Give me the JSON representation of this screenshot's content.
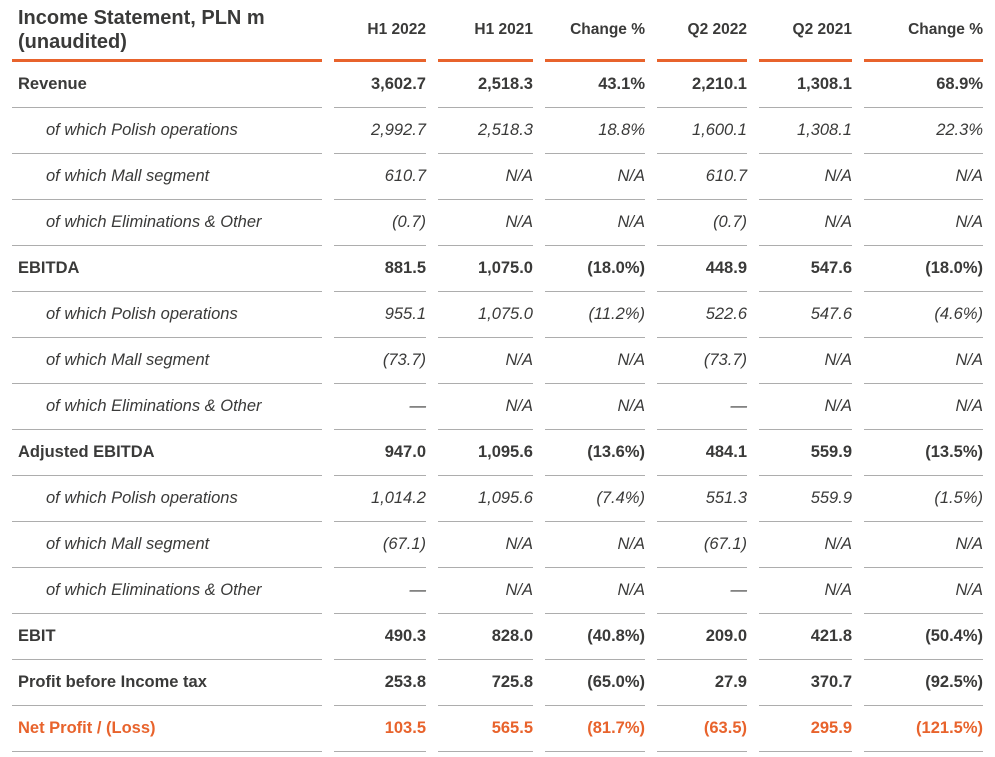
{
  "chart_data": {
    "type": "table",
    "title_line1": "Income Statement, PLN m",
    "title_line2": "(unaudited)",
    "columns": [
      "H1 2022",
      "H1 2021",
      "Change %",
      "Q2 2022",
      "Q2 2021",
      "Change %"
    ],
    "rows": [
      {
        "label": "Revenue",
        "style": "section",
        "values": [
          "3,602.7",
          "2,518.3",
          "43.1%",
          "2,210.1",
          "1,308.1",
          "68.9%"
        ]
      },
      {
        "label": "of which Polish operations",
        "style": "sub",
        "values": [
          "2,992.7",
          "2,518.3",
          "18.8%",
          "1,600.1",
          "1,308.1",
          "22.3%"
        ]
      },
      {
        "label": "of which Mall segment",
        "style": "sub",
        "values": [
          "610.7",
          "N/A",
          "N/A",
          "610.7",
          "N/A",
          "N/A"
        ]
      },
      {
        "label": "of which Eliminations & Other",
        "style": "sub",
        "values": [
          "(0.7)",
          "N/A",
          "N/A",
          "(0.7)",
          "N/A",
          "N/A"
        ]
      },
      {
        "label": "EBITDA",
        "style": "section",
        "values": [
          "881.5",
          "1,075.0",
          "(18.0%)",
          "448.9",
          "547.6",
          "(18.0%)"
        ]
      },
      {
        "label": "of which Polish operations",
        "style": "sub",
        "values": [
          "955.1",
          "1,075.0",
          "(11.2%)",
          "522.6",
          "547.6",
          "(4.6%)"
        ]
      },
      {
        "label": "of which Mall segment",
        "style": "sub",
        "values": [
          "(73.7)",
          "N/A",
          "N/A",
          "(73.7)",
          "N/A",
          "N/A"
        ]
      },
      {
        "label": "of which Eliminations & Other",
        "style": "sub",
        "values": [
          "—",
          "N/A",
          "N/A",
          "—",
          "N/A",
          "N/A"
        ]
      },
      {
        "label": "Adjusted EBITDA",
        "style": "section",
        "values": [
          "947.0",
          "1,095.6",
          "(13.6%)",
          "484.1",
          "559.9",
          "(13.5%)"
        ]
      },
      {
        "label": "of which Polish operations",
        "style": "sub",
        "values": [
          "1,014.2",
          "1,095.6",
          "(7.4%)",
          "551.3",
          "559.9",
          "(1.5%)"
        ]
      },
      {
        "label": "of which Mall segment",
        "style": "sub",
        "values": [
          "(67.1)",
          "N/A",
          "N/A",
          "(67.1)",
          "N/A",
          "N/A"
        ]
      },
      {
        "label": "of which Eliminations & Other",
        "style": "sub",
        "values": [
          "—",
          "N/A",
          "N/A",
          "—",
          "N/A",
          "N/A"
        ]
      },
      {
        "label": "EBIT",
        "style": "section",
        "values": [
          "490.3",
          "828.0",
          "(40.8%)",
          "209.0",
          "421.8",
          "(50.4%)"
        ]
      },
      {
        "label": "Profit before Income tax",
        "style": "section",
        "values": [
          "253.8",
          "725.8",
          "(65.0%)",
          "27.9",
          "370.7",
          "(92.5%)"
        ]
      },
      {
        "label": "Net Profit / (Loss)",
        "style": "highlight",
        "values": [
          "103.5",
          "565.5",
          "(81.7%)",
          "(63.5)",
          "295.9",
          "(121.5%)"
        ]
      }
    ],
    "colors": {
      "accent_orange": "#E8632C",
      "text_dark": "#3A3A39",
      "separator_gray": "#ADADAD"
    }
  }
}
